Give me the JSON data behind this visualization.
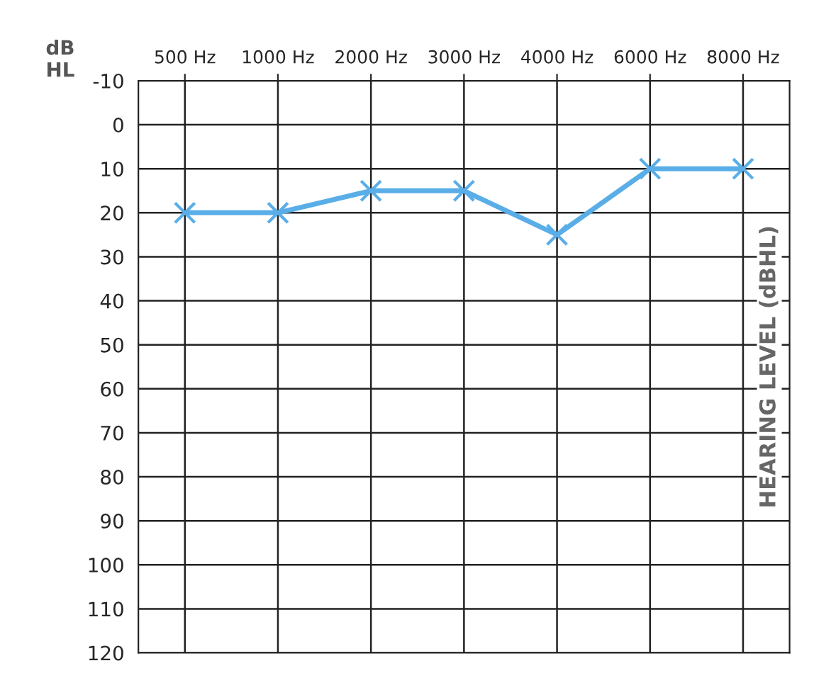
{
  "chart_data": {
    "type": "line",
    "categories": [
      "500 Hz",
      "1000 Hz",
      "2000 Hz",
      "3000 Hz",
      "4000 Hz",
      "6000 Hz",
      "8000 Hz"
    ],
    "series": [
      {
        "color": "#5aaee8",
        "values": [
          20,
          20,
          15,
          15,
          25,
          10,
          10
        ]
      }
    ],
    "ylabel": "dB\nHL",
    "annotations": [
      "HEARING LEVEL (dBHL)"
    ],
    "ylim": [
      120,
      -10
    ],
    "yticks": [
      -10,
      0,
      10,
      20,
      30,
      40,
      50,
      60,
      70,
      80,
      90,
      100,
      110,
      120
    ],
    "grid": true,
    "marker": "cross",
    "line_style": "solid"
  }
}
